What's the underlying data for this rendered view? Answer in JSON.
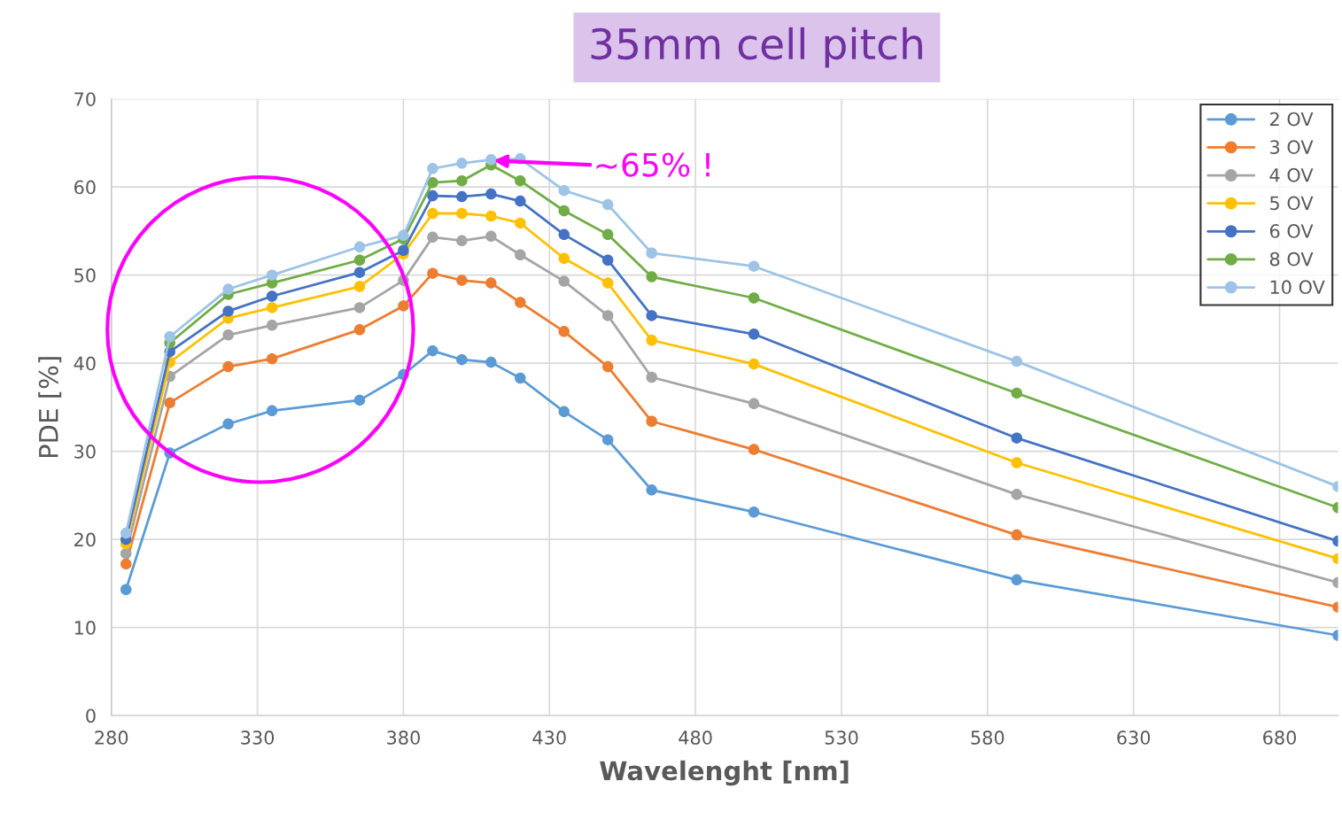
{
  "chart_data": {
    "type": "line",
    "title": "35mm cell pitch",
    "xlabel": "Wavelenght [nm]",
    "ylabel": "PDE [%]",
    "x": [
      285,
      300,
      320,
      335,
      365,
      380,
      390,
      400,
      410,
      420,
      435,
      450,
      465,
      500,
      590,
      700
    ],
    "series": [
      {
        "name": "2 OV",
        "color": "#5b9bd5",
        "values": [
          14.3,
          29.8,
          33.1,
          34.6,
          35.8,
          38.7,
          41.4,
          40.4,
          40.1,
          38.3,
          34.5,
          31.3,
          25.6,
          23.1,
          15.4,
          9.1
        ]
      },
      {
        "name": "3 OV",
        "color": "#ed7d31",
        "values": [
          17.2,
          35.5,
          39.6,
          40.5,
          43.8,
          46.5,
          50.2,
          49.4,
          49.1,
          46.9,
          43.6,
          39.6,
          33.4,
          30.2,
          20.5,
          12.3
        ]
      },
      {
        "name": "4 OV",
        "color": "#a5a5a5",
        "values": [
          18.4,
          38.5,
          43.2,
          44.3,
          46.3,
          49.4,
          54.3,
          53.9,
          54.4,
          52.3,
          49.3,
          45.4,
          38.4,
          35.4,
          25.1,
          15.1
        ]
      },
      {
        "name": "5 OV",
        "color": "#ffc000",
        "values": [
          19.5,
          40.1,
          45.1,
          46.3,
          48.7,
          52.4,
          57.0,
          57.0,
          56.7,
          55.9,
          51.9,
          49.1,
          42.6,
          39.9,
          28.7,
          17.8
        ]
      },
      {
        "name": "6 OV",
        "color": "#4472c4",
        "values": [
          20.0,
          41.3,
          45.9,
          47.6,
          50.3,
          52.8,
          59.0,
          58.9,
          59.2,
          58.4,
          54.6,
          51.7,
          45.4,
          43.3,
          31.5,
          19.8
        ]
      },
      {
        "name": "8 OV",
        "color": "#70ad47",
        "values": [
          null,
          42.3,
          47.8,
          49.1,
          51.7,
          54.1,
          60.5,
          60.7,
          62.5,
          60.7,
          57.3,
          54.6,
          49.8,
          47.4,
          36.6,
          23.6
        ]
      },
      {
        "name": "10 OV",
        "color": "#9dc3e6",
        "values": [
          20.7,
          43.0,
          48.4,
          50.0,
          53.2,
          54.5,
          62.1,
          62.7,
          63.1,
          63.2,
          59.6,
          58.0,
          52.5,
          51.0,
          40.2,
          26.0
        ]
      }
    ],
    "annotations": [
      {
        "text": "~65% !",
        "x": 410,
        "y": 63
      }
    ],
    "xlim": [
      280,
      700
    ],
    "xticks": [
      280,
      330,
      380,
      430,
      480,
      530,
      580,
      630,
      680
    ],
    "ylim": [
      0,
      70
    ],
    "yticks": [
      0,
      10,
      20,
      30,
      40,
      50,
      60,
      70
    ],
    "grid": true,
    "legend": "top right",
    "marker": "circle",
    "line_style": "solid"
  }
}
